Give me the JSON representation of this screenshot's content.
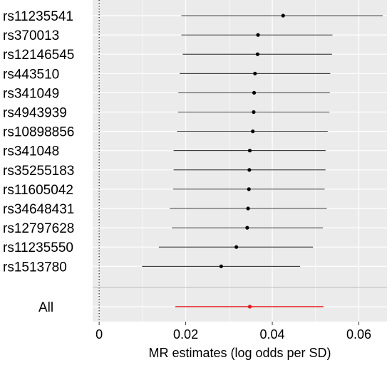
{
  "chart_data": {
    "type": "forest",
    "xlabel": "MR estimates (log odds per SD)",
    "xlim": [
      -0.0015,
      0.0665
    ],
    "x_ticks": [
      0,
      0.02,
      0.04,
      0.06
    ],
    "x_tick_labels": [
      "0",
      "0.02",
      "0.04",
      "0.06"
    ],
    "reference_line": 0,
    "grid": true,
    "snps": [
      {
        "label": "rs11235541",
        "estimate": 0.0425,
        "lower": 0.019,
        "upper": 0.0655
      },
      {
        "label": "rs370013",
        "estimate": 0.0367,
        "lower": 0.019,
        "upper": 0.0539
      },
      {
        "label": "rs12146545",
        "estimate": 0.0366,
        "lower": 0.0193,
        "upper": 0.0538
      },
      {
        "label": "rs443510",
        "estimate": 0.036,
        "lower": 0.0186,
        "upper": 0.0534
      },
      {
        "label": "rs341049",
        "estimate": 0.0358,
        "lower": 0.0183,
        "upper": 0.0533
      },
      {
        "label": "rs4943939",
        "estimate": 0.0357,
        "lower": 0.0182,
        "upper": 0.0532
      },
      {
        "label": "rs10898856",
        "estimate": 0.0355,
        "lower": 0.018,
        "upper": 0.0528
      },
      {
        "label": "rs341048",
        "estimate": 0.0348,
        "lower": 0.0172,
        "upper": 0.0523
      },
      {
        "label": "rs35255183",
        "estimate": 0.0347,
        "lower": 0.0172,
        "upper": 0.0523
      },
      {
        "label": "rs11605042",
        "estimate": 0.0346,
        "lower": 0.0171,
        "upper": 0.0521
      },
      {
        "label": "rs34648431",
        "estimate": 0.0344,
        "lower": 0.0163,
        "upper": 0.0526
      },
      {
        "label": "rs12797628",
        "estimate": 0.0342,
        "lower": 0.0168,
        "upper": 0.0517
      },
      {
        "label": "rs11235550",
        "estimate": 0.0317,
        "lower": 0.0138,
        "upper": 0.0494
      },
      {
        "label": "rs1513780",
        "estimate": 0.0282,
        "lower": 0.0099,
        "upper": 0.0464
      }
    ],
    "overall": {
      "label": "All",
      "estimate": 0.0348,
      "lower": 0.0176,
      "upper": 0.0518
    },
    "colors": {
      "panel": "#ebebeb",
      "grid": "#ffffff",
      "point": "#000000",
      "ci": "#000000",
      "overall": "#e41a1c",
      "reference": "#000000",
      "separator": "#bdbdbd"
    }
  }
}
